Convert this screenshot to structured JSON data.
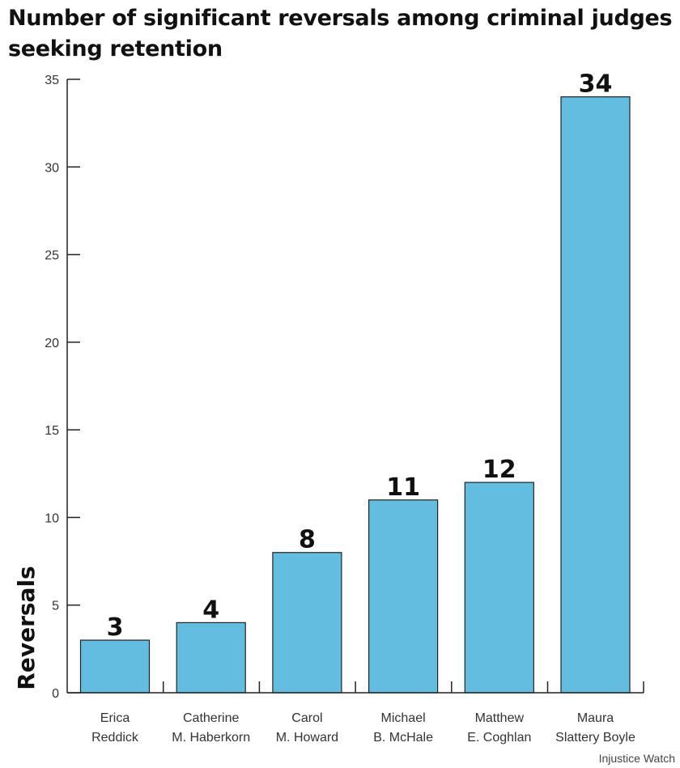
{
  "chart_data": {
    "type": "bar",
    "title": "Number of significant reversals among criminal judges seeking retention",
    "ylabel": "Reversals",
    "xlabel": "",
    "ylim": [
      0,
      35
    ],
    "yticks": [
      0,
      5,
      10,
      15,
      20,
      25,
      30,
      35
    ],
    "categories": [
      [
        "Erica",
        "Reddick"
      ],
      [
        "Catherine",
        "M. Haberkorn"
      ],
      [
        "Carol",
        "M. Howard"
      ],
      [
        "Michael",
        "B. McHale"
      ],
      [
        "Matthew",
        "E. Coghlan"
      ],
      [
        "Maura",
        "Slattery Boyle"
      ]
    ],
    "values": [
      3,
      4,
      8,
      11,
      12,
      34
    ],
    "data_labels": [
      "3",
      "4",
      "8",
      "11",
      "12",
      "34"
    ],
    "bar_color": "#62bde0",
    "bar_stroke": "#222222",
    "grid": false,
    "source": "Injustice Watch"
  }
}
